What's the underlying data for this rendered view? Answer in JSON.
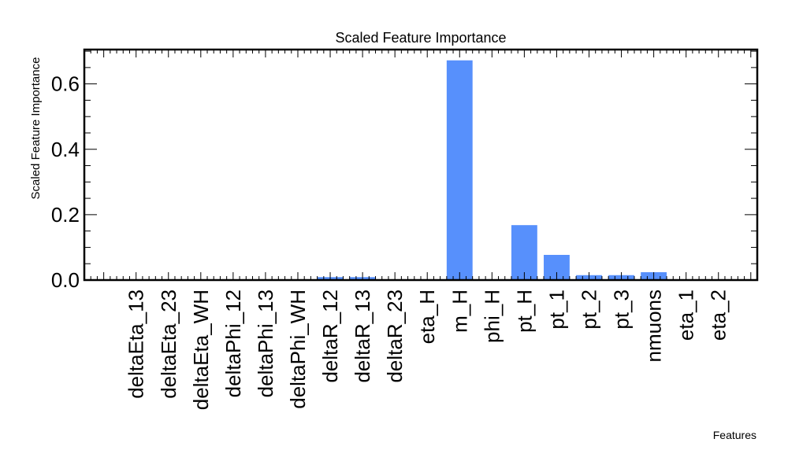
{
  "chart_data": {
    "type": "bar",
    "title": "Scaled Feature Importance",
    "xlabel": "Features",
    "ylabel": "Scaled Feature Importance",
    "categories": [
      "deltaEta_13",
      "deltaEta_23",
      "deltaEta_WH",
      "deltaPhi_12",
      "deltaPhi_13",
      "deltaPhi_WH",
      "deltaR_12",
      "deltaR_13",
      "deltaR_23",
      "eta_H",
      "m_H",
      "phi_H",
      "pt_H",
      "pt_1",
      "pt_2",
      "pt_3",
      "nmuons",
      "eta_1",
      "eta_2"
    ],
    "values": [
      0.0,
      0.0,
      0.0,
      0.0,
      0.0,
      0.0,
      0.009,
      0.009,
      0.0,
      0.0,
      0.672,
      0.0,
      0.168,
      0.077,
      0.015,
      0.015,
      0.024,
      0.0,
      0.0
    ],
    "ylim": [
      0,
      0.705
    ],
    "yticks": [
      "0.0",
      "0.2",
      "0.4",
      "0.6"
    ],
    "ytick_values": [
      0.0,
      0.2,
      0.4,
      0.6
    ],
    "bar_color": "#5790fc",
    "grid": false
  }
}
